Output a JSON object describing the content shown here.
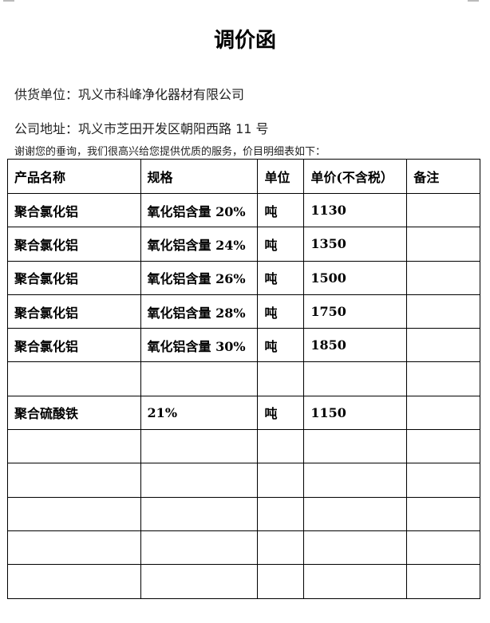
{
  "title": "调价函",
  "supplier": "供货单位：巩义市科峰净化器材有限公司",
  "address": "公司地址：巩义市芝田开发区朝阳西路 11 号",
  "intro": "谢谢您的垂询，我们很高兴给您提供优质的服务，价目明细表如下：",
  "table": {
    "headers": [
      "产品名称",
      "规格",
      "单位",
      "单价(不含税）",
      "备注"
    ],
    "rows": [
      [
        "聚合氯化铝",
        "氧化铝含量 20%",
        "吨",
        "1130",
        ""
      ],
      [
        "聚合氯化铝",
        "氧化铝含量 24%",
        "吨",
        "1350",
        ""
      ],
      [
        "聚合氯化铝",
        "氧化铝含量 26%",
        "吨",
        "1500",
        ""
      ],
      [
        "聚合氯化铝",
        "氧化铝含量 28%",
        "吨",
        "1750",
        ""
      ],
      [
        "聚合氯化铝",
        "氧化铝含量 30%",
        "吨",
        "1850",
        ""
      ],
      [
        "",
        "",
        "",
        "",
        ""
      ],
      [
        "聚合硫酸铁",
        "21%",
        "吨",
        "1150",
        ""
      ],
      [
        "",
        "",
        "",
        "",
        ""
      ],
      [
        "",
        "",
        "",
        "",
        ""
      ],
      [
        "",
        "",
        "",
        "",
        ""
      ],
      [
        "",
        "",
        "",
        "",
        ""
      ],
      [
        "",
        "",
        "",
        "",
        ""
      ]
    ]
  }
}
